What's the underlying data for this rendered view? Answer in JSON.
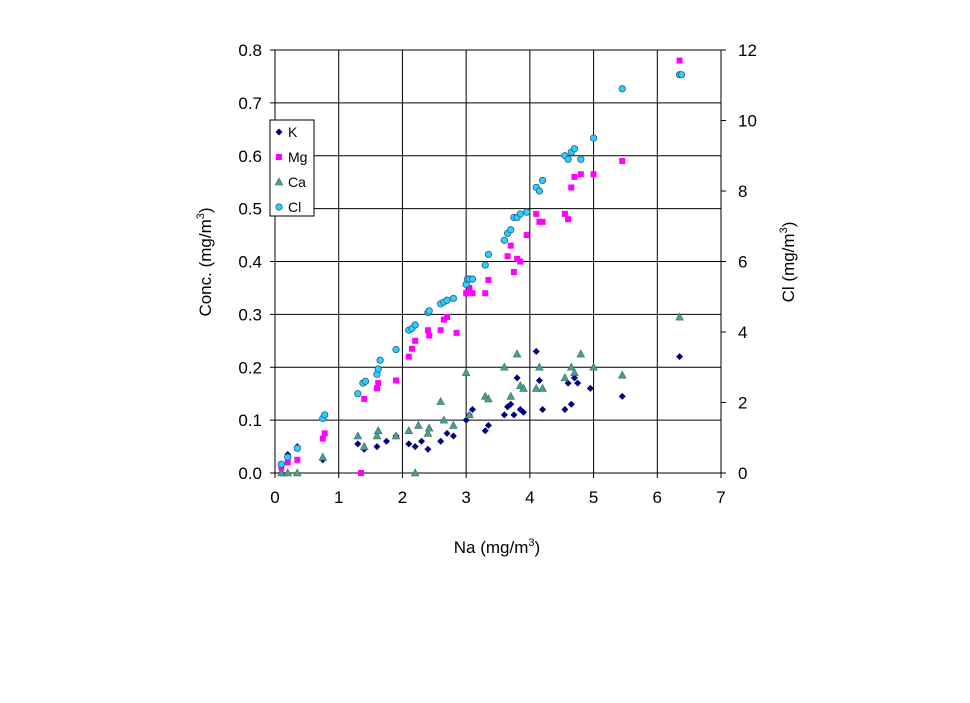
{
  "chart_data": {
    "type": "scatter",
    "xlabel": "Na (mg/m",
    "xlabel_sup": "3",
    "xlabel_tail": ")",
    "ylabel": "Conc. (mg/m",
    "ylabel_sup": "3",
    "ylabel_tail": ")",
    "y2label": "Cl (mg/m",
    "y2label_sup": "3",
    "y2label_tail": ")",
    "xlim": [
      0,
      7
    ],
    "ylim": [
      0,
      0.8
    ],
    "y2lim": [
      0,
      12
    ],
    "x_ticks": [
      "0",
      "1",
      "2",
      "3",
      "4",
      "5",
      "6",
      "7"
    ],
    "y_ticks": [
      "0.0",
      "0.1",
      "0.2",
      "0.3",
      "0.4",
      "0.5",
      "0.6",
      "0.7",
      "0.8"
    ],
    "y2_ticks": [
      "0",
      "2",
      "4",
      "6",
      "8",
      "10",
      "12"
    ],
    "grid": true,
    "legend_position": "top-left",
    "series": [
      {
        "name": "K",
        "axis": "left",
        "color": "#000080",
        "marker": "diamond",
        "x": [
          0.1,
          0.2,
          0.35,
          0.75,
          1.3,
          1.4,
          1.6,
          1.75,
          1.9,
          2.1,
          2.2,
          2.3,
          2.4,
          2.6,
          2.7,
          2.8,
          3.0,
          3.05,
          3.1,
          3.3,
          3.35,
          3.6,
          3.65,
          3.7,
          3.75,
          3.8,
          3.85,
          3.9,
          4.1,
          4.15,
          4.2,
          4.55,
          4.6,
          4.65,
          4.7,
          4.75,
          4.95,
          5.45,
          6.35
        ],
        "y": [
          0.0,
          0.035,
          0.05,
          0.025,
          0.055,
          0.045,
          0.05,
          0.06,
          0.07,
          0.055,
          0.05,
          0.06,
          0.045,
          0.06,
          0.075,
          0.07,
          0.1,
          0.11,
          0.12,
          0.08,
          0.09,
          0.11,
          0.125,
          0.13,
          0.11,
          0.18,
          0.12,
          0.115,
          0.23,
          0.175,
          0.12,
          0.12,
          0.17,
          0.13,
          0.18,
          0.17,
          0.16,
          0.145,
          0.22
        ]
      },
      {
        "name": "Mg",
        "axis": "left",
        "color": "#ff00ff",
        "marker": "square",
        "x": [
          0.1,
          0.2,
          0.35,
          0.75,
          0.78,
          1.35,
          1.4,
          1.6,
          1.62,
          1.9,
          2.1,
          2.15,
          2.2,
          2.4,
          2.42,
          2.6,
          2.65,
          2.7,
          2.85,
          3.0,
          3.05,
          3.1,
          3.3,
          3.35,
          3.65,
          3.7,
          3.75,
          3.8,
          3.85,
          3.95,
          4.1,
          4.15,
          4.2,
          4.55,
          4.6,
          4.65,
          4.7,
          4.8,
          5.0,
          5.45,
          6.35
        ],
        "y": [
          0.01,
          0.02,
          0.025,
          0.065,
          0.075,
          0.0,
          0.14,
          0.16,
          0.17,
          0.175,
          0.22,
          0.235,
          0.25,
          0.27,
          0.26,
          0.27,
          0.29,
          0.295,
          0.265,
          0.34,
          0.35,
          0.34,
          0.34,
          0.365,
          0.41,
          0.43,
          0.38,
          0.405,
          0.4,
          0.45,
          0.49,
          0.475,
          0.475,
          0.49,
          0.48,
          0.54,
          0.56,
          0.565,
          0.565,
          0.59,
          0.78
        ]
      },
      {
        "name": "Ca",
        "axis": "left",
        "color": "#4d9e8e",
        "marker": "triangle",
        "x": [
          0.1,
          0.2,
          0.35,
          0.75,
          1.3,
          1.4,
          1.6,
          1.62,
          1.9,
          2.1,
          2.2,
          2.25,
          2.4,
          2.42,
          2.6,
          2.65,
          2.8,
          3.0,
          3.05,
          3.3,
          3.35,
          3.6,
          3.7,
          3.8,
          3.85,
          3.9,
          4.1,
          4.15,
          4.2,
          4.55,
          4.65,
          4.7,
          4.8,
          5.0,
          5.45,
          6.35
        ],
        "y": [
          0.0,
          0.0,
          0.0,
          0.03,
          0.07,
          0.05,
          0.07,
          0.08,
          0.07,
          0.08,
          0.0,
          0.09,
          0.075,
          0.085,
          0.135,
          0.1,
          0.09,
          0.19,
          0.11,
          0.145,
          0.14,
          0.2,
          0.145,
          0.225,
          0.165,
          0.16,
          0.16,
          0.2,
          0.16,
          0.18,
          0.2,
          0.19,
          0.225,
          0.2,
          0.185,
          0.295
        ]
      },
      {
        "name": "Cl",
        "axis": "right",
        "color": "#33ccff",
        "marker": "circle",
        "x": [
          0.1,
          0.2,
          0.35,
          0.75,
          0.78,
          1.3,
          1.38,
          1.42,
          1.6,
          1.62,
          1.65,
          1.9,
          2.1,
          2.15,
          2.2,
          2.4,
          2.42,
          2.6,
          2.65,
          2.7,
          2.8,
          3.0,
          3.02,
          3.05,
          3.1,
          3.3,
          3.35,
          3.6,
          3.65,
          3.7,
          3.75,
          3.8,
          3.85,
          3.95,
          4.1,
          4.15,
          4.2,
          4.55,
          4.6,
          4.65,
          4.7,
          4.8,
          5.0,
          5.45,
          6.35,
          6.38
        ],
        "y": [
          0.25,
          0.45,
          0.7,
          1.55,
          1.65,
          2.25,
          2.55,
          2.6,
          2.8,
          2.95,
          3.2,
          3.5,
          4.05,
          4.1,
          4.2,
          4.55,
          4.6,
          4.8,
          4.85,
          4.9,
          4.95,
          5.35,
          5.5,
          5.5,
          5.5,
          5.9,
          6.2,
          6.6,
          6.8,
          6.9,
          7.25,
          7.25,
          7.35,
          7.4,
          8.1,
          8.0,
          8.3,
          9.0,
          8.9,
          9.1,
          9.2,
          8.9,
          9.5,
          10.9,
          11.3,
          11.3
        ]
      }
    ]
  }
}
